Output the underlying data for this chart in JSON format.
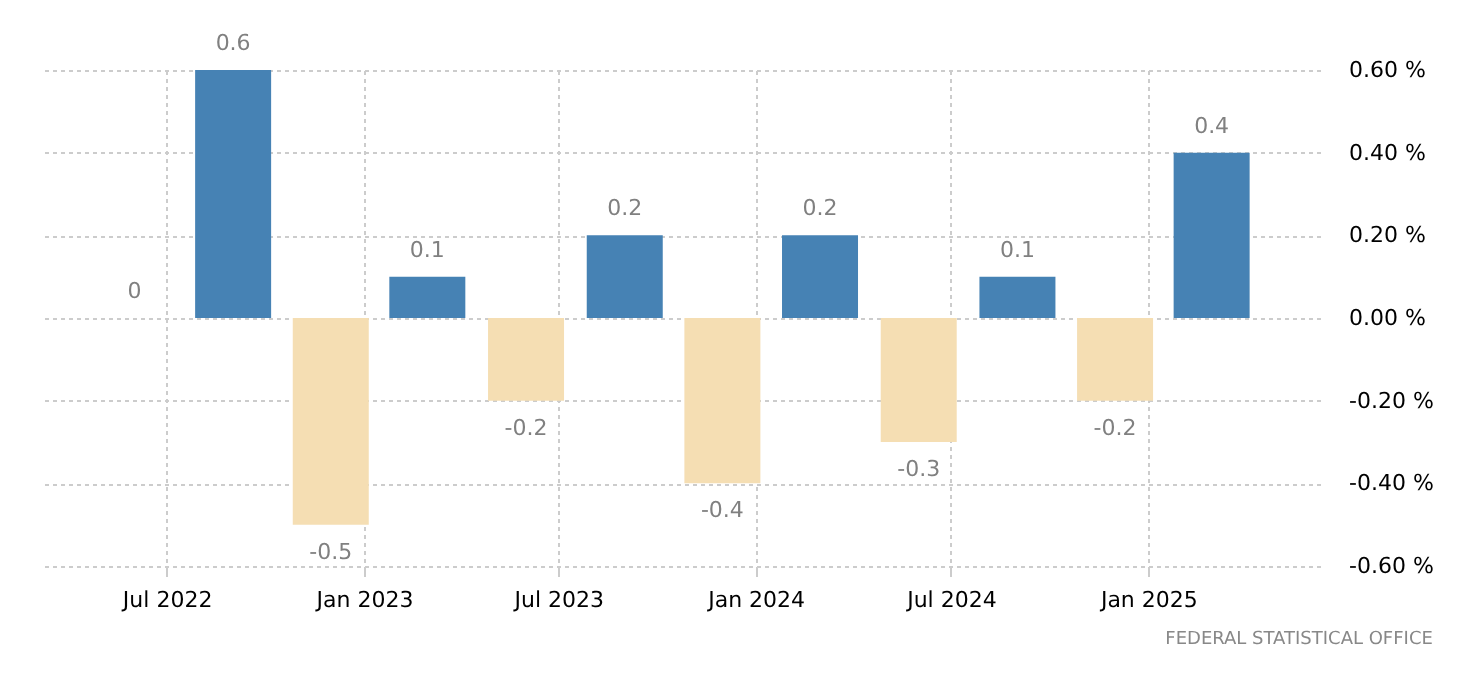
{
  "chart_data": {
    "type": "bar",
    "x": [
      "2022-06",
      "2022-09",
      "2022-12",
      "2023-03",
      "2023-06",
      "2023-09",
      "2023-12",
      "2024-03",
      "2024-06",
      "2024-09",
      "2024-12",
      "2025-03"
    ],
    "values": [
      0,
      0.6,
      -0.5,
      0.1,
      -0.2,
      0.2,
      -0.4,
      0.2,
      -0.3,
      0.1,
      -0.2,
      0.4
    ],
    "colors": [
      "#4682b4",
      "#4682b4",
      "#f5deb3",
      "#4682b4",
      "#f5deb3",
      "#4682b4",
      "#f5deb3",
      "#4682b4",
      "#f5deb3",
      "#4682b4",
      "#f5deb3",
      "#4682b4"
    ],
    "data_labels": true,
    "xlim": [
      "2022-03-05",
      "2025-06-10"
    ],
    "xticks": [
      {
        "value": "2022-07",
        "label": "Jul 2022"
      },
      {
        "value": "2023-01",
        "label": "Jan 2023"
      },
      {
        "value": "2023-07",
        "label": "Jul 2023"
      },
      {
        "value": "2024-01",
        "label": "Jan 2024"
      },
      {
        "value": "2024-07",
        "label": "Jul 2024"
      },
      {
        "value": "2025-01",
        "label": "Jan 2025"
      }
    ],
    "ylim": [
      -0.6,
      0.6
    ],
    "yticks": [
      {
        "value": -0.6,
        "label": "-0.60 %"
      },
      {
        "value": -0.4,
        "label": "-0.40 %"
      },
      {
        "value": -0.2,
        "label": "-0.20 %"
      },
      {
        "value": 0,
        "label": "0.00 %"
      },
      {
        "value": 0.2,
        "label": "0.20 %"
      },
      {
        "value": 0.4,
        "label": "0.40 %"
      },
      {
        "value": 0.6,
        "label": "0.60 %"
      }
    ],
    "grid": true,
    "annotations": [
      "FEDERAL STATISTICAL OFFICE"
    ]
  }
}
